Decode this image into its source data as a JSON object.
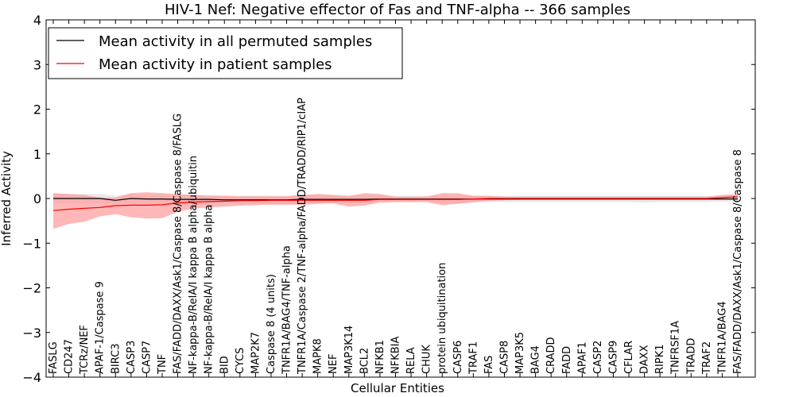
{
  "chart_data": {
    "type": "line",
    "title": "HIV-1 Nef: Negative effector of Fas and TNF-alpha -- 366 samples",
    "xlabel": "Cellular Entities",
    "ylabel": "Inferred Activity",
    "ylim": [
      -4,
      4
    ],
    "yticks": [
      -4,
      -3,
      -2,
      -1,
      0,
      1,
      2,
      3,
      4
    ],
    "ytick_labels": [
      "−4",
      "−3",
      "−2",
      "−1",
      "0",
      "1",
      "2",
      "3",
      "4"
    ],
    "grid": false,
    "legend_position": "top-left",
    "categories": [
      "FASLG",
      "CD247",
      "TCRz/NEF",
      "APAF-1/Caspase 9",
      "BIRC3",
      "CASP3",
      "CASP7",
      "TNF",
      "FAS/FADD/DAXX/Ask1/Caspase 8/Caspase 8/FASLG",
      "NF-kappa-B/RelA/I kappa B alpha/ubiquitin",
      "NF-kappa-B/RelA/I kappa B alpha",
      "BID",
      "CYCS",
      "MAP2K7",
      "Caspase 8 (4 units)",
      "TNFR1A/BAG4/TNF-alpha",
      "TNFR1A/Caspase 2/TNF-alpha/FADD/TRADD/RIP1/cIAP",
      "MAPK8",
      "NEF",
      "MAP3K14",
      "BCL2",
      "NFKB1",
      "NFKBIA",
      "RELA",
      "CHUK",
      "protein ubiquitination",
      "CASP6",
      "TRAF1",
      "FAS",
      "CASP8",
      "MAP3K5",
      "BAG4",
      "CRADD",
      "FADD",
      "APAF1",
      "CASP2",
      "CASP9",
      "CFLAR",
      "DAXX",
      "RIPK1",
      "TNFRSF1A",
      "TRADD",
      "TRAF2",
      "TNFR1A/BAG4",
      "FAS/FADD/DAXX/Ask1/Caspase 8/Caspase 8"
    ],
    "series": [
      {
        "name": "Mean activity in all permuted samples",
        "color": "#000000",
        "band_color": "#cccccc",
        "values": [
          0.0,
          0.0,
          0.0,
          0.0,
          -0.04,
          0.0,
          -0.01,
          -0.01,
          -0.02,
          -0.02,
          -0.02,
          -0.03,
          -0.03,
          -0.03,
          -0.03,
          -0.03,
          -0.02,
          -0.02,
          -0.02,
          -0.02,
          -0.02,
          -0.01,
          -0.01,
          -0.01,
          -0.01,
          -0.01,
          -0.01,
          -0.01,
          -0.01,
          -0.01,
          -0.01,
          -0.01,
          -0.01,
          -0.01,
          -0.01,
          -0.01,
          -0.01,
          -0.01,
          -0.01,
          -0.01,
          -0.01,
          -0.01,
          -0.01,
          -0.01,
          -0.01
        ],
        "lower": [
          -0.1,
          -0.1,
          -0.1,
          -0.1,
          -0.13,
          -0.1,
          -0.1,
          -0.1,
          -0.12,
          -0.12,
          -0.12,
          -0.12,
          -0.12,
          -0.12,
          -0.12,
          -0.12,
          -0.12,
          -0.1,
          -0.1,
          -0.1,
          -0.1,
          -0.08,
          -0.08,
          -0.07,
          -0.07,
          -0.1,
          -0.12,
          -0.1,
          -0.08,
          -0.08,
          -0.08,
          -0.08,
          -0.08,
          -0.08,
          -0.08,
          -0.08,
          -0.08,
          -0.08,
          -0.09,
          -0.08,
          -0.08,
          -0.08,
          -0.08,
          -0.07,
          -0.06
        ],
        "upper": [
          0.1,
          0.1,
          0.1,
          0.1,
          0.06,
          0.1,
          0.08,
          0.08,
          0.08,
          0.08,
          0.08,
          0.06,
          0.06,
          0.06,
          0.06,
          0.06,
          0.08,
          0.08,
          0.08,
          0.08,
          0.08,
          0.06,
          0.06,
          0.06,
          0.06,
          0.06,
          0.06,
          0.06,
          0.06,
          0.06,
          0.06,
          0.06,
          0.06,
          0.06,
          0.06,
          0.06,
          0.06,
          0.06,
          0.06,
          0.06,
          0.06,
          0.06,
          0.06,
          0.06,
          0.06
        ]
      },
      {
        "name": "Mean activity in patient samples",
        "color": "#ff0000",
        "band_color": "#ff9999",
        "values": [
          -0.27,
          -0.24,
          -0.22,
          -0.2,
          -0.16,
          -0.15,
          -0.15,
          -0.14,
          -0.1,
          -0.08,
          -0.07,
          -0.06,
          -0.05,
          -0.05,
          -0.04,
          -0.04,
          -0.04,
          -0.04,
          -0.04,
          -0.04,
          -0.04,
          -0.02,
          -0.02,
          -0.02,
          -0.02,
          -0.02,
          -0.02,
          -0.01,
          0.0,
          0.0,
          0.0,
          0.0,
          0.0,
          0.0,
          0.0,
          0.0,
          0.0,
          0.0,
          0.0,
          0.0,
          0.0,
          0.0,
          0.0,
          0.02,
          0.04
        ],
        "lower": [
          -0.68,
          -0.57,
          -0.52,
          -0.4,
          -0.35,
          -0.42,
          -0.45,
          -0.44,
          -0.3,
          -0.22,
          -0.2,
          -0.18,
          -0.16,
          -0.15,
          -0.14,
          -0.14,
          -0.14,
          -0.12,
          -0.11,
          -0.18,
          -0.16,
          -0.09,
          -0.08,
          -0.08,
          -0.08,
          -0.15,
          -0.12,
          -0.08,
          -0.05,
          -0.04,
          -0.03,
          -0.03,
          -0.03,
          -0.03,
          -0.03,
          -0.03,
          -0.03,
          -0.03,
          -0.03,
          -0.03,
          -0.03,
          -0.03,
          -0.03,
          -0.02,
          -0.01
        ],
        "upper": [
          0.12,
          0.1,
          0.08,
          0.02,
          0.02,
          0.12,
          0.14,
          0.12,
          0.1,
          0.08,
          0.06,
          0.06,
          0.05,
          0.05,
          0.05,
          0.05,
          0.08,
          0.1,
          0.08,
          0.05,
          0.12,
          0.1,
          0.04,
          0.04,
          0.04,
          0.12,
          0.12,
          0.06,
          0.06,
          0.04,
          0.04,
          0.04,
          0.04,
          0.04,
          0.04,
          0.04,
          0.04,
          0.04,
          0.04,
          0.04,
          0.04,
          0.04,
          0.04,
          0.08,
          0.1
        ]
      }
    ]
  }
}
